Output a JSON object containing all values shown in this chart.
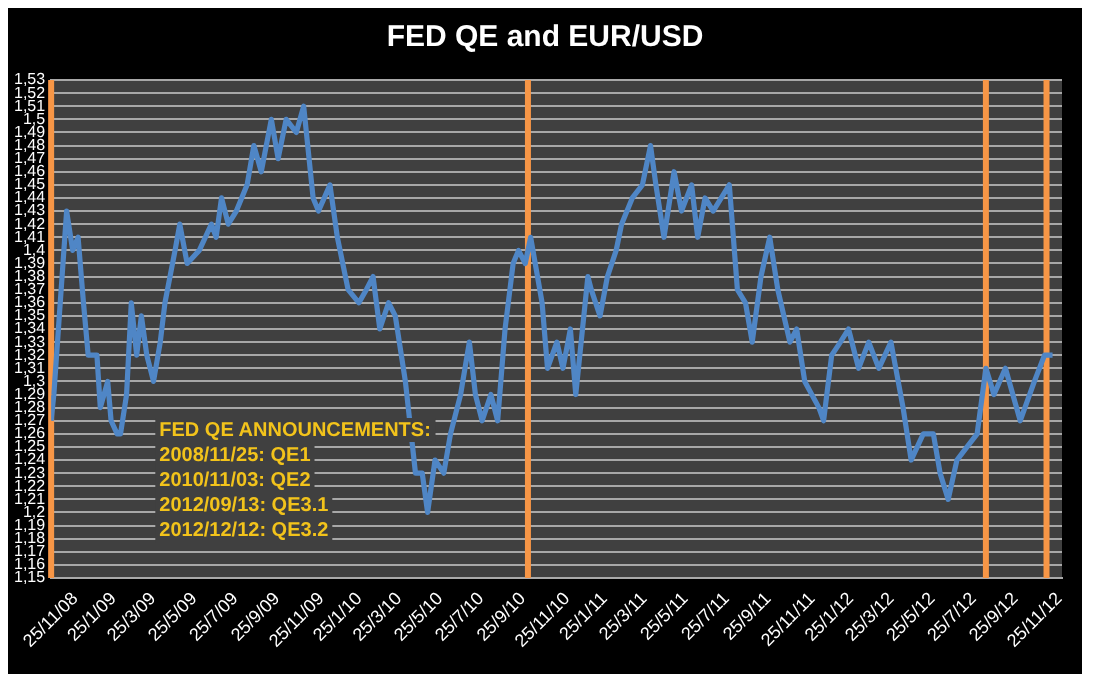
{
  "chart_data": {
    "type": "line",
    "title": "FED QE and EUR/USD",
    "x": [
      "2008-11-25",
      "2008-11-29",
      "2008-12-18",
      "2008-12-27",
      "2009-01-04",
      "2009-01-12",
      "2009-01-19",
      "2009-02-01",
      "2009-02-06",
      "2009-02-17",
      "2009-02-22",
      "2009-03-03",
      "2009-03-08",
      "2009-03-17",
      "2009-03-24",
      "2009-04-01",
      "2009-04-08",
      "2009-04-16",
      "2009-04-26",
      "2009-05-06",
      "2009-05-13",
      "2009-05-28",
      "2009-06-04",
      "2009-06-15",
      "2009-07-03",
      "2009-07-21",
      "2009-07-28",
      "2009-08-05",
      "2009-08-15",
      "2009-08-27",
      "2009-09-12",
      "2009-09-22",
      "2009-10-03",
      "2009-10-18",
      "2009-10-28",
      "2009-11-09",
      "2009-11-24",
      "2009-12-05",
      "2009-12-19",
      "2009-12-27",
      "2010-01-13",
      "2010-01-24",
      "2010-02-09",
      "2010-02-25",
      "2010-03-08",
      "2010-03-18",
      "2010-03-28",
      "2010-04-10",
      "2010-04-20",
      "2010-05-05",
      "2010-05-20",
      "2010-05-30",
      "2010-06-07",
      "2010-06-18",
      "2010-07-01",
      "2010-07-11",
      "2010-07-26",
      "2010-08-08",
      "2010-08-17",
      "2010-08-27",
      "2010-09-09",
      "2010-09-19",
      "2010-09-30",
      "2010-10-12",
      "2010-10-20",
      "2010-10-30",
      "2010-11-07",
      "2010-11-24",
      "2010-12-02",
      "2010-12-16",
      "2010-12-25",
      "2011-01-05",
      "2011-01-13",
      "2011-01-31",
      "2011-02-05",
      "2011-02-18",
      "2011-03-01",
      "2011-03-14",
      "2011-03-22",
      "2011-04-07",
      "2011-04-22",
      "2011-05-04",
      "2011-05-12",
      "2011-05-24",
      "2011-06-08",
      "2011-06-19",
      "2011-07-04",
      "2011-07-13",
      "2011-07-24",
      "2011-08-05",
      "2011-08-29",
      "2011-09-10",
      "2011-09-22",
      "2011-10-02",
      "2011-10-15",
      "2011-10-28",
      "2011-11-09",
      "2011-11-27",
      "2011-12-07",
      "2011-12-19",
      "2012-01-09",
      "2012-01-16",
      "2012-01-28",
      "2012-02-10",
      "2012-02-22",
      "2012-03-08",
      "2012-03-23",
      "2012-04-07",
      "2012-04-25",
      "2012-05-13",
      "2012-05-25",
      "2012-06-12",
      "2012-06-27",
      "2012-07-07",
      "2012-07-19",
      "2012-08-01",
      "2012-08-16",
      "2012-08-31",
      "2012-09-13",
      "2012-09-25",
      "2012-10-12",
      "2012-11-03",
      "2012-11-24",
      "2012-12-09",
      "2012-12-21"
    ],
    "series": [
      {
        "color": "#4f86c6",
        "values": [
          1.27,
          1.29,
          1.43,
          1.4,
          1.41,
          1.36,
          1.32,
          1.32,
          1.28,
          1.3,
          1.27,
          1.26,
          1.26,
          1.29,
          1.36,
          1.32,
          1.35,
          1.32,
          1.3,
          1.33,
          1.36,
          1.4,
          1.42,
          1.39,
          1.4,
          1.42,
          1.41,
          1.44,
          1.42,
          1.43,
          1.45,
          1.48,
          1.46,
          1.5,
          1.47,
          1.5,
          1.49,
          1.51,
          1.44,
          1.43,
          1.45,
          1.41,
          1.37,
          1.36,
          1.37,
          1.38,
          1.34,
          1.36,
          1.35,
          1.3,
          1.23,
          1.23,
          1.2,
          1.24,
          1.23,
          1.26,
          1.29,
          1.33,
          1.29,
          1.27,
          1.29,
          1.27,
          1.34,
          1.39,
          1.4,
          1.39,
          1.41,
          1.36,
          1.31,
          1.33,
          1.31,
          1.34,
          1.29,
          1.38,
          1.37,
          1.35,
          1.38,
          1.4,
          1.42,
          1.44,
          1.45,
          1.48,
          1.45,
          1.41,
          1.46,
          1.43,
          1.45,
          1.41,
          1.44,
          1.43,
          1.45,
          1.37,
          1.36,
          1.33,
          1.38,
          1.41,
          1.37,
          1.33,
          1.34,
          1.3,
          1.28,
          1.27,
          1.32,
          1.33,
          1.34,
          1.31,
          1.33,
          1.31,
          1.33,
          1.28,
          1.24,
          1.26,
          1.26,
          1.23,
          1.21,
          1.24,
          1.25,
          1.26,
          1.31,
          1.29,
          1.31,
          1.27,
          1.3,
          1.32,
          1.32
        ]
      }
    ],
    "xlim": [
      "2008-11-25",
      "2013-01-04"
    ],
    "xticks": [
      {
        "value": "2008-11-25",
        "label": "25/11/08"
      },
      {
        "value": "2009-01-25",
        "label": "25/1/09"
      },
      {
        "value": "2009-03-25",
        "label": "25/3/09"
      },
      {
        "value": "2009-05-25",
        "label": "25/5/09"
      },
      {
        "value": "2009-07-25",
        "label": "25/7/09"
      },
      {
        "value": "2009-09-25",
        "label": "25/9/09"
      },
      {
        "value": "2009-11-25",
        "label": "25/11/09"
      },
      {
        "value": "2010-01-25",
        "label": "25/1/10"
      },
      {
        "value": "2010-03-25",
        "label": "25/3/10"
      },
      {
        "value": "2010-05-25",
        "label": "25/5/10"
      },
      {
        "value": "2010-07-25",
        "label": "25/7/10"
      },
      {
        "value": "2010-09-25",
        "label": "25/9/10"
      },
      {
        "value": "2010-11-25",
        "label": "25/11/10"
      },
      {
        "value": "2011-01-25",
        "label": "25/1/11"
      },
      {
        "value": "2011-03-25",
        "label": "25/3/11"
      },
      {
        "value": "2011-05-25",
        "label": "25/5/11"
      },
      {
        "value": "2011-07-25",
        "label": "25/7/11"
      },
      {
        "value": "2011-09-25",
        "label": "25/9/11"
      },
      {
        "value": "2011-11-25",
        "label": "25/11/11"
      },
      {
        "value": "2012-01-25",
        "label": "25/1/12"
      },
      {
        "value": "2012-03-25",
        "label": "25/3/12"
      },
      {
        "value": "2012-05-25",
        "label": "25/5/12"
      },
      {
        "value": "2012-07-25",
        "label": "25/7/12"
      },
      {
        "value": "2012-09-25",
        "label": "25/9/12"
      },
      {
        "value": "2012-11-25",
        "label": "25/11/12"
      }
    ],
    "ylim": [
      1.15,
      1.53
    ],
    "yticks": [
      {
        "value": 1.15,
        "label": "1,15"
      },
      {
        "value": 1.16,
        "label": "1,16"
      },
      {
        "value": 1.17,
        "label": "1,17"
      },
      {
        "value": 1.18,
        "label": "1,18"
      },
      {
        "value": 1.19,
        "label": "1,19"
      },
      {
        "value": 1.2,
        "label": "1,2"
      },
      {
        "value": 1.21,
        "label": "1,21"
      },
      {
        "value": 1.22,
        "label": "1,22"
      },
      {
        "value": 1.23,
        "label": "1,23"
      },
      {
        "value": 1.24,
        "label": "1,24"
      },
      {
        "value": 1.25,
        "label": "1,25"
      },
      {
        "value": 1.26,
        "label": "1,26"
      },
      {
        "value": 1.27,
        "label": "1,27"
      },
      {
        "value": 1.28,
        "label": "1,28"
      },
      {
        "value": 1.29,
        "label": "1,29"
      },
      {
        "value": 1.3,
        "label": "1,3"
      },
      {
        "value": 1.31,
        "label": "1,31"
      },
      {
        "value": 1.32,
        "label": "1,32"
      },
      {
        "value": 1.33,
        "label": "1,33"
      },
      {
        "value": 1.34,
        "label": "1,34"
      },
      {
        "value": 1.35,
        "label": "1,35"
      },
      {
        "value": 1.36,
        "label": "1,36"
      },
      {
        "value": 1.37,
        "label": "1,37"
      },
      {
        "value": 1.38,
        "label": "1,38"
      },
      {
        "value": 1.39,
        "label": "1,39"
      },
      {
        "value": 1.4,
        "label": "1,4"
      },
      {
        "value": 1.41,
        "label": "1,41"
      },
      {
        "value": 1.42,
        "label": "1,42"
      },
      {
        "value": 1.43,
        "label": "1,43"
      },
      {
        "value": 1.44,
        "label": "1,44"
      },
      {
        "value": 1.45,
        "label": "1,45"
      },
      {
        "value": 1.46,
        "label": "1,46"
      },
      {
        "value": 1.47,
        "label": "1,47"
      },
      {
        "value": 1.48,
        "label": "1,48"
      },
      {
        "value": 1.49,
        "label": "1,49"
      },
      {
        "value": 1.5,
        "label": "1,5"
      },
      {
        "value": 1.51,
        "label": "1,51"
      },
      {
        "value": 1.52,
        "label": "1,52"
      },
      {
        "value": 1.53,
        "label": "1,53"
      }
    ],
    "ref_lines": [
      {
        "axis": "x",
        "value": "2008-11-25",
        "color": "#f79646"
      },
      {
        "axis": "x",
        "value": "2010-11-03",
        "color": "#f79646"
      },
      {
        "axis": "x",
        "value": "2012-09-13",
        "color": "#f79646"
      },
      {
        "axis": "x",
        "value": "2012-12-12",
        "color": "#f79646"
      }
    ],
    "annotations": [
      "FED QE ANNOUNCEMENTS:",
      "2008/11/25: QE1",
      "2010/11/03: QE2",
      "2012/09/13: QE3.1",
      "2012/12/12: QE3.2"
    ],
    "grid": "y",
    "legend": false,
    "marker": "none",
    "line_style": "solid"
  }
}
